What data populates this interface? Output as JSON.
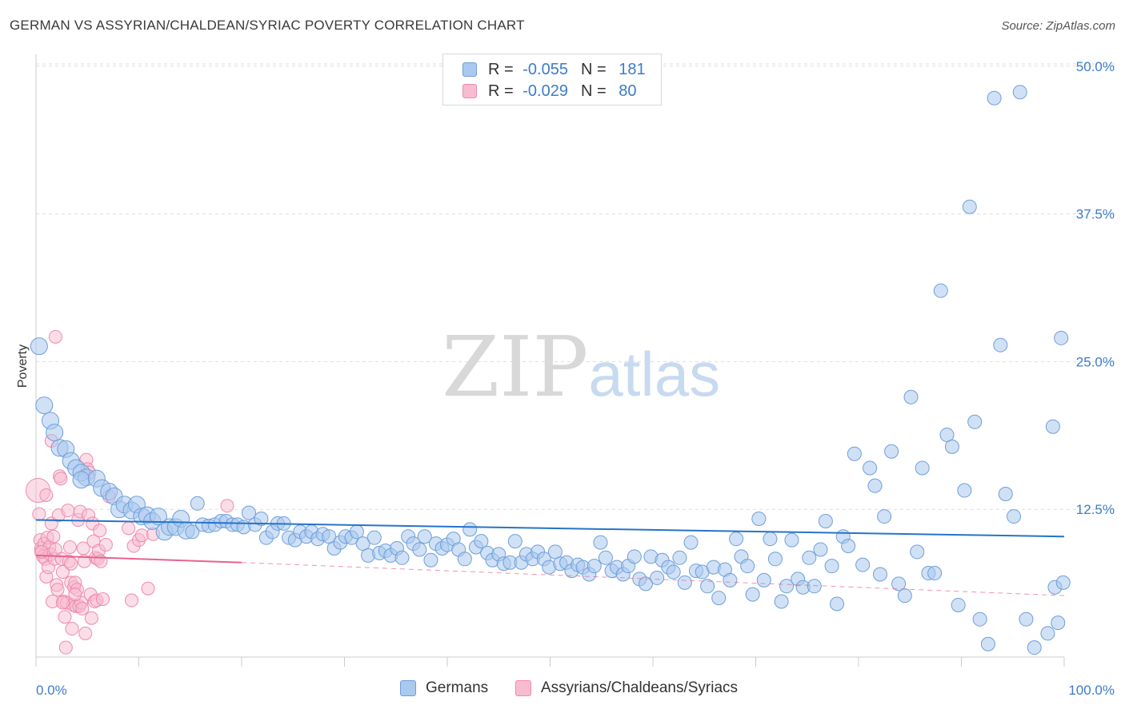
{
  "title": "GERMAN VS ASSYRIAN/CHALDEAN/SYRIAC POVERTY CORRELATION CHART",
  "source": "Source: ZipAtlas.com",
  "watermark": {
    "zip": "ZIP",
    "atlas": "atlas"
  },
  "legend": {
    "german": {
      "r_label": "R = ",
      "r_value": "-0.055",
      "n_label": "N = ",
      "n_value": "181"
    },
    "assyrian": {
      "r_label": "R = ",
      "r_value": "-0.029",
      "n_label": "N = ",
      "n_value": "80"
    }
  },
  "bottom_legend": {
    "german": "Germans",
    "assyrian": "Assyrians/Chaldeans/Syriacs"
  },
  "colors": {
    "german_fill": "#a9c9ef",
    "german_stroke": "#6e9fd8",
    "german_line": "#2673c9",
    "assyrian_fill": "#f7bcd0",
    "assyrian_stroke": "#ee8aab",
    "assyrian_line": "#e8628f",
    "tick_text": "#3d7cc9",
    "grid": "#dddddd"
  },
  "chart_data": {
    "type": "scatter",
    "title": "GERMAN VS ASSYRIAN/CHALDEAN/SYRIAC POVERTY CORRELATION CHART",
    "xlabel": "",
    "ylabel": "Poverty",
    "xlim": [
      0,
      100
    ],
    "ylim": [
      0,
      51
    ],
    "x_tick_labels": [
      "0.0%",
      "100.0%"
    ],
    "y_ticks": [
      12.5,
      25.0,
      37.5,
      50.0
    ],
    "y_tick_labels": [
      "12.5%",
      "25.0%",
      "37.5%",
      "50.0%"
    ],
    "grid": true,
    "legend_position": "top-center",
    "series": [
      {
        "name": "Germans",
        "r": -0.055,
        "n": 181,
        "trend": {
          "x": [
            0,
            100
          ],
          "y": [
            11.6,
            10.2
          ],
          "style": "solid"
        },
        "points": [
          [
            0.3,
            26.3
          ],
          [
            0.8,
            21.3
          ],
          [
            1.4,
            20.0
          ],
          [
            1.8,
            19.0
          ],
          [
            2.3,
            17.7
          ],
          [
            2.9,
            17.6
          ],
          [
            3.4,
            16.6
          ],
          [
            3.9,
            16.0
          ],
          [
            4.4,
            15.6
          ],
          [
            4.9,
            15.2
          ],
          [
            4.4,
            15.0
          ],
          [
            5.9,
            15.1
          ],
          [
            6.4,
            14.3
          ],
          [
            7.1,
            14.0
          ],
          [
            7.6,
            13.6
          ],
          [
            8.1,
            12.5
          ],
          [
            8.6,
            12.9
          ],
          [
            9.3,
            12.4
          ],
          [
            9.8,
            12.9
          ],
          [
            10.3,
            11.9
          ],
          [
            10.8,
            12.0
          ],
          [
            11.3,
            11.5
          ],
          [
            11.9,
            11.9
          ],
          [
            12.5,
            10.6
          ],
          [
            13.0,
            11.0
          ],
          [
            13.6,
            11.0
          ],
          [
            14.1,
            11.7
          ],
          [
            14.6,
            10.7
          ],
          [
            15.2,
            10.6
          ],
          [
            15.7,
            13.0
          ],
          [
            16.2,
            11.2
          ],
          [
            16.8,
            11.1
          ],
          [
            17.4,
            11.2
          ],
          [
            18.0,
            11.5
          ],
          [
            18.5,
            11.5
          ],
          [
            19.1,
            11.2
          ],
          [
            19.6,
            11.2
          ],
          [
            20.2,
            11.0
          ],
          [
            20.7,
            12.2
          ],
          [
            21.3,
            11.2
          ],
          [
            21.9,
            11.7
          ],
          [
            22.4,
            10.1
          ],
          [
            23.0,
            10.6
          ],
          [
            23.5,
            11.3
          ],
          [
            24.1,
            11.3
          ],
          [
            24.6,
            10.1
          ],
          [
            25.2,
            9.9
          ],
          [
            25.7,
            10.6
          ],
          [
            26.3,
            10.2
          ],
          [
            26.8,
            10.6
          ],
          [
            27.4,
            10.0
          ],
          [
            27.9,
            10.4
          ],
          [
            28.5,
            10.2
          ],
          [
            29.0,
            9.2
          ],
          [
            29.6,
            9.7
          ],
          [
            30.1,
            10.2
          ],
          [
            30.7,
            10.1
          ],
          [
            31.2,
            10.6
          ],
          [
            31.8,
            9.6
          ],
          [
            32.3,
            8.6
          ],
          [
            32.9,
            10.1
          ],
          [
            33.4,
            8.8
          ],
          [
            34.0,
            9.0
          ],
          [
            34.5,
            8.6
          ],
          [
            35.1,
            9.2
          ],
          [
            35.6,
            8.4
          ],
          [
            36.2,
            10.2
          ],
          [
            36.7,
            9.6
          ],
          [
            37.3,
            9.1
          ],
          [
            37.8,
            10.2
          ],
          [
            38.4,
            8.2
          ],
          [
            38.9,
            9.6
          ],
          [
            39.5,
            9.2
          ],
          [
            40.0,
            9.5
          ],
          [
            40.6,
            10.0
          ],
          [
            41.1,
            9.1
          ],
          [
            41.7,
            8.3
          ],
          [
            42.2,
            10.8
          ],
          [
            42.8,
            9.3
          ],
          [
            43.3,
            9.8
          ],
          [
            43.9,
            8.8
          ],
          [
            44.4,
            8.2
          ],
          [
            45.0,
            8.7
          ],
          [
            45.5,
            7.9
          ],
          [
            46.1,
            8.0
          ],
          [
            46.6,
            9.8
          ],
          [
            47.2,
            8.0
          ],
          [
            47.7,
            8.7
          ],
          [
            48.3,
            8.3
          ],
          [
            48.8,
            8.9
          ],
          [
            49.4,
            8.3
          ],
          [
            49.9,
            7.6
          ],
          [
            50.5,
            8.9
          ],
          [
            51.0,
            7.9
          ],
          [
            51.6,
            8.0
          ],
          [
            52.1,
            7.3
          ],
          [
            52.7,
            7.8
          ],
          [
            53.2,
            7.6
          ],
          [
            53.8,
            7.0
          ],
          [
            54.3,
            7.7
          ],
          [
            54.9,
            9.7
          ],
          [
            55.4,
            8.4
          ],
          [
            56.0,
            7.3
          ],
          [
            56.5,
            7.6
          ],
          [
            57.1,
            7.0
          ],
          [
            57.6,
            7.7
          ],
          [
            58.2,
            8.5
          ],
          [
            58.7,
            6.6
          ],
          [
            59.3,
            6.2
          ],
          [
            59.8,
            8.5
          ],
          [
            60.4,
            6.7
          ],
          [
            60.9,
            8.2
          ],
          [
            61.5,
            7.6
          ],
          [
            62.0,
            7.2
          ],
          [
            62.6,
            8.4
          ],
          [
            63.1,
            6.3
          ],
          [
            63.7,
            9.7
          ],
          [
            64.2,
            7.3
          ],
          [
            64.8,
            7.2
          ],
          [
            65.3,
            6.0
          ],
          [
            65.9,
            7.6
          ],
          [
            66.4,
            5.0
          ],
          [
            67.0,
            7.4
          ],
          [
            67.5,
            6.5
          ],
          [
            68.1,
            10.0
          ],
          [
            68.6,
            8.5
          ],
          [
            69.2,
            7.7
          ],
          [
            69.7,
            5.3
          ],
          [
            70.3,
            11.7
          ],
          [
            70.8,
            6.5
          ],
          [
            71.4,
            10.0
          ],
          [
            71.9,
            8.3
          ],
          [
            72.5,
            4.7
          ],
          [
            73.0,
            6.0
          ],
          [
            73.5,
            9.9
          ],
          [
            74.1,
            6.6
          ],
          [
            74.6,
            5.9
          ],
          [
            75.2,
            8.4
          ],
          [
            75.7,
            6.0
          ],
          [
            76.3,
            9.1
          ],
          [
            76.8,
            11.5
          ],
          [
            77.4,
            7.7
          ],
          [
            77.9,
            4.5
          ],
          [
            78.5,
            10.2
          ],
          [
            79.0,
            9.4
          ],
          [
            79.6,
            17.2
          ],
          [
            80.4,
            7.8
          ],
          [
            81.1,
            16.0
          ],
          [
            81.6,
            14.5
          ],
          [
            82.1,
            7.0
          ],
          [
            82.5,
            11.9
          ],
          [
            83.2,
            17.4
          ],
          [
            83.9,
            6.2
          ],
          [
            84.5,
            5.2
          ],
          [
            85.1,
            22.0
          ],
          [
            85.7,
            8.9
          ],
          [
            86.2,
            16.0
          ],
          [
            86.8,
            7.1
          ],
          [
            87.4,
            7.1
          ],
          [
            88.0,
            31.0
          ],
          [
            88.6,
            18.8
          ],
          [
            89.1,
            17.8
          ],
          [
            89.7,
            4.4
          ],
          [
            90.3,
            14.1
          ],
          [
            90.8,
            38.1
          ],
          [
            91.3,
            19.9
          ],
          [
            91.8,
            3.2
          ],
          [
            92.6,
            1.1
          ],
          [
            93.2,
            47.3
          ],
          [
            93.8,
            26.4
          ],
          [
            94.3,
            13.8
          ],
          [
            95.1,
            11.9
          ],
          [
            95.7,
            47.8
          ],
          [
            96.3,
            3.2
          ],
          [
            97.1,
            0.8
          ],
          [
            98.4,
            2.0
          ],
          [
            98.9,
            19.5
          ],
          [
            99.1,
            5.9
          ],
          [
            99.4,
            2.9
          ],
          [
            99.7,
            27.0
          ],
          [
            99.9,
            6.3
          ]
        ]
      },
      {
        "name": "Assyrians/Chaldeans/Syriacs",
        "r": -0.029,
        "n": 80,
        "trend": {
          "x": [
            0,
            20
          ],
          "y": [
            8.6,
            8.0
          ],
          "style": "solid",
          "dashed_to": [
            100,
            5.2
          ]
        },
        "points": [
          [
            0.2,
            14.1
          ],
          [
            0.3,
            12.1
          ],
          [
            0.4,
            9.9
          ],
          [
            0.5,
            9.2
          ],
          [
            0.6,
            8.9
          ],
          [
            0.7,
            8.5
          ],
          [
            0.8,
            9.6
          ],
          [
            0.9,
            8.3
          ],
          [
            1.0,
            6.8
          ],
          [
            1.1,
            10.1
          ],
          [
            1.2,
            7.6
          ],
          [
            1.3,
            9.3
          ],
          [
            1.4,
            8.7
          ],
          [
            1.5,
            11.3
          ],
          [
            1.6,
            4.7
          ],
          [
            1.7,
            10.2
          ],
          [
            1.8,
            8.3
          ],
          [
            1.9,
            9.1
          ],
          [
            2.0,
            6.1
          ],
          [
            2.1,
            5.7
          ],
          [
            2.2,
            12.0
          ],
          [
            2.3,
            15.3
          ],
          [
            2.4,
            15.1
          ],
          [
            2.5,
            8.3
          ],
          [
            2.6,
            7.2
          ],
          [
            2.7,
            4.7
          ],
          [
            2.8,
            3.4
          ],
          [
            2.9,
            0.8
          ],
          [
            3.0,
            4.6
          ],
          [
            3.1,
            12.4
          ],
          [
            3.2,
            8.1
          ],
          [
            3.3,
            9.3
          ],
          [
            3.4,
            6.3
          ],
          [
            3.5,
            2.4
          ],
          [
            3.6,
            4.4
          ],
          [
            3.7,
            5.9
          ],
          [
            3.8,
            6.3
          ],
          [
            3.9,
            4.3
          ],
          [
            4.0,
            5.7
          ],
          [
            4.1,
            11.6
          ],
          [
            4.2,
            4.3
          ],
          [
            4.3,
            12.3
          ],
          [
            4.4,
            4.6
          ],
          [
            4.5,
            4.1
          ],
          [
            4.6,
            9.2
          ],
          [
            4.7,
            8.1
          ],
          [
            4.8,
            2.0
          ],
          [
            4.9,
            16.7
          ],
          [
            5.0,
            15.9
          ],
          [
            5.1,
            12.0
          ],
          [
            5.2,
            15.6
          ],
          [
            5.3,
            5.3
          ],
          [
            5.4,
            3.3
          ],
          [
            5.5,
            11.3
          ],
          [
            5.6,
            9.8
          ],
          [
            5.7,
            4.7
          ],
          [
            5.8,
            8.4
          ],
          [
            5.9,
            4.8
          ],
          [
            6.0,
            8.3
          ],
          [
            6.1,
            9.0
          ],
          [
            6.2,
            10.7
          ],
          [
            6.3,
            8.1
          ],
          [
            6.5,
            4.9
          ],
          [
            6.8,
            9.5
          ],
          [
            7.1,
            13.6
          ],
          [
            1.9,
            27.1
          ],
          [
            1.5,
            18.3
          ],
          [
            3.8,
            5.3
          ],
          [
            2.6,
            4.6
          ],
          [
            3.4,
            7.9
          ],
          [
            9.0,
            10.9
          ],
          [
            9.3,
            4.8
          ],
          [
            9.5,
            9.4
          ],
          [
            10.0,
            9.9
          ],
          [
            10.3,
            10.3
          ],
          [
            10.9,
            5.8
          ],
          [
            11.4,
            10.4
          ],
          [
            18.6,
            12.8
          ],
          [
            1.0,
            13.7
          ],
          [
            0.5,
            8.9
          ]
        ]
      }
    ]
  }
}
